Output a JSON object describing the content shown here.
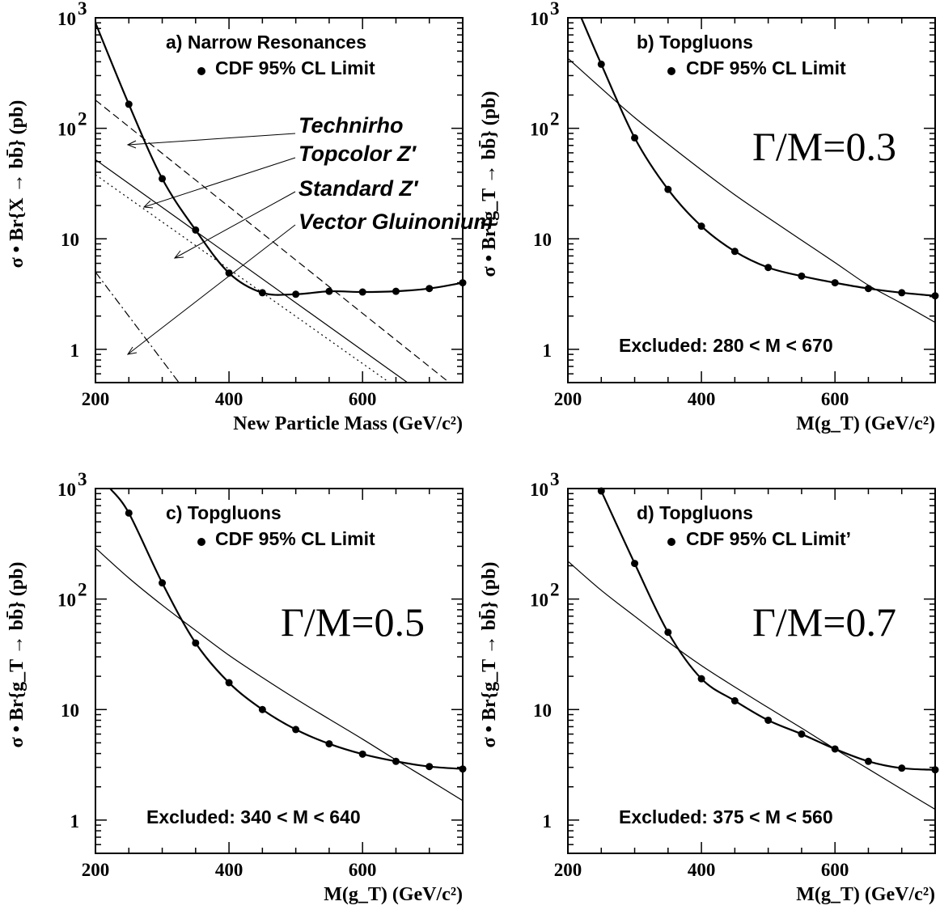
{
  "chart_data": [
    {
      "type": "line",
      "panel": "a",
      "title": "a) Narrow Resonances",
      "legend": "CDF 95% CL Limit",
      "xlabel": "New Particle Mass (GeV/c²)",
      "ylabel": "σ • Br{X → bb̄} (pb)",
      "xlim": [
        200,
        750
      ],
      "ylim": [
        0.5,
        1000
      ],
      "yscale": "log",
      "xticks": [
        200,
        400,
        600
      ],
      "yticks": [
        {
          "value": 1,
          "label": "1"
        },
        {
          "value": 10,
          "label": "10"
        },
        {
          "value": 100,
          "label": "10 2"
        },
        {
          "value": 1000,
          "label": "10 3"
        }
      ],
      "limit": {
        "x": [
          250,
          300,
          350,
          400,
          450,
          500,
          550,
          600,
          650,
          700,
          750
        ],
        "y": [
          165,
          35,
          12,
          4.9,
          3.25,
          3.15,
          3.35,
          3.3,
          3.35,
          3.55,
          4.0
        ],
        "curve_start": [
          200,
          900
        ]
      },
      "theory": [
        {
          "name": "Technirho",
          "style": "dashed",
          "x": [
            200,
            750
          ],
          "y": [
            180,
            0.4
          ]
        },
        {
          "name": "Topcolor Z′",
          "style": "solid",
          "x": [
            200,
            750
          ],
          "y": [
            52,
            0.22
          ]
        },
        {
          "name": "Standard Z′",
          "style": "dotted",
          "x": [
            200,
            750
          ],
          "y": [
            38,
            0.17
          ]
        },
        {
          "name": "Vector Gluinonium",
          "style": "dashdot",
          "x": [
            200,
            450
          ],
          "y": [
            5,
            0.05
          ]
        }
      ]
    },
    {
      "type": "line",
      "panel": "b",
      "title": "b)  Topgluons",
      "legend": "CDF 95% CL Limit",
      "ratio": "Γ/M=0.3",
      "excluded": "Excluded: 280 < M < 670",
      "xlabel": "M(g_T) (GeV/c²)",
      "ylabel": "σ • Br{g_T → bb̄} (pb)",
      "xlim": [
        200,
        750
      ],
      "ylim": [
        0.5,
        1000
      ],
      "yscale": "log",
      "xticks": [
        200,
        400,
        600
      ],
      "yticks": [
        {
          "value": 1,
          "label": "1"
        },
        {
          "value": 10,
          "label": "10"
        },
        {
          "value": 100,
          "label": "10 2"
        },
        {
          "value": 1000,
          "label": "10 3"
        }
      ],
      "limit": {
        "x": [
          250,
          300,
          350,
          400,
          450,
          500,
          550,
          600,
          650,
          700,
          750
        ],
        "y": [
          380,
          82,
          28,
          13,
          7.7,
          5.5,
          4.6,
          4.0,
          3.55,
          3.25,
          3.05
        ],
        "curve_start": [
          220,
          1000
        ]
      },
      "theory": [
        {
          "name": "",
          "style": "solid",
          "x": [
            200,
            250,
            300,
            350,
            400,
            450,
            500,
            550,
            600,
            650,
            700,
            750
          ],
          "y": [
            430,
            230,
            125,
            72,
            42,
            25,
            15.5,
            9.7,
            6.1,
            3.8,
            2.6,
            1.75
          ]
        }
      ]
    },
    {
      "type": "line",
      "panel": "c",
      "title": "c)  Topgluons",
      "legend": "CDF 95% CL Limit",
      "ratio": "Γ/M=0.5",
      "excluded": "Excluded: 340 < M < 640",
      "xlabel": "M(g_T) (GeV/c²)",
      "ylabel": "σ • Br{g_T → bb̄} (pb)",
      "xlim": [
        200,
        750
      ],
      "ylim": [
        0.5,
        1000
      ],
      "yscale": "log",
      "xticks": [
        200,
        400,
        600
      ],
      "yticks": [
        {
          "value": 1,
          "label": "1"
        },
        {
          "value": 10,
          "label": "10"
        },
        {
          "value": 100,
          "label": "10 2"
        },
        {
          "value": 1000,
          "label": "10 3"
        }
      ],
      "limit": {
        "x": [
          250,
          300,
          350,
          400,
          450,
          500,
          550,
          600,
          650,
          700,
          750
        ],
        "y": [
          600,
          140,
          40,
          17.5,
          10,
          6.6,
          4.9,
          3.95,
          3.4,
          3.05,
          2.9
        ],
        "curve_start": [
          222,
          1000
        ]
      },
      "theory": [
        {
          "name": "",
          "style": "solid",
          "x": [
            200,
            250,
            300,
            350,
            400,
            450,
            500,
            550,
            600,
            650,
            700,
            750
          ],
          "y": [
            290,
            155,
            88,
            52,
            31,
            19.5,
            12.5,
            8.2,
            5.4,
            3.5,
            2.3,
            1.5
          ]
        }
      ]
    },
    {
      "type": "line",
      "panel": "d",
      "title": "d)  Topgluons",
      "legend": "CDF 95% CL Limit’",
      "ratio": "Γ/M=0.7",
      "excluded": "Excluded: 375 < M < 560",
      "xlabel": "M(g_T) (GeV/c²)",
      "ylabel": "σ • Br{g_T → bb̄} (pb)",
      "xlim": [
        200,
        750
      ],
      "ylim": [
        0.5,
        1000
      ],
      "yscale": "log",
      "xticks": [
        200,
        400,
        600
      ],
      "yticks": [
        {
          "value": 1,
          "label": "1"
        },
        {
          "value": 10,
          "label": "10"
        },
        {
          "value": 100,
          "label": "10 2"
        },
        {
          "value": 1000,
          "label": "10 3"
        }
      ],
      "limit": {
        "x": [
          250,
          300,
          350,
          400,
          450,
          500,
          550,
          600,
          650,
          700,
          750
        ],
        "y": [
          950,
          210,
          50,
          19,
          12,
          8.0,
          6.0,
          4.4,
          3.4,
          2.95,
          2.85
        ],
        "curve_start": [
          248,
          1000
        ]
      },
      "theory": [
        {
          "name": "",
          "style": "solid",
          "x": [
            200,
            250,
            300,
            350,
            400,
            450,
            500,
            550,
            600,
            650,
            700,
            750
          ],
          "y": [
            220,
            120,
            70,
            41,
            25,
            16,
            10.4,
            6.8,
            4.4,
            2.9,
            1.9,
            1.25
          ]
        }
      ]
    }
  ]
}
